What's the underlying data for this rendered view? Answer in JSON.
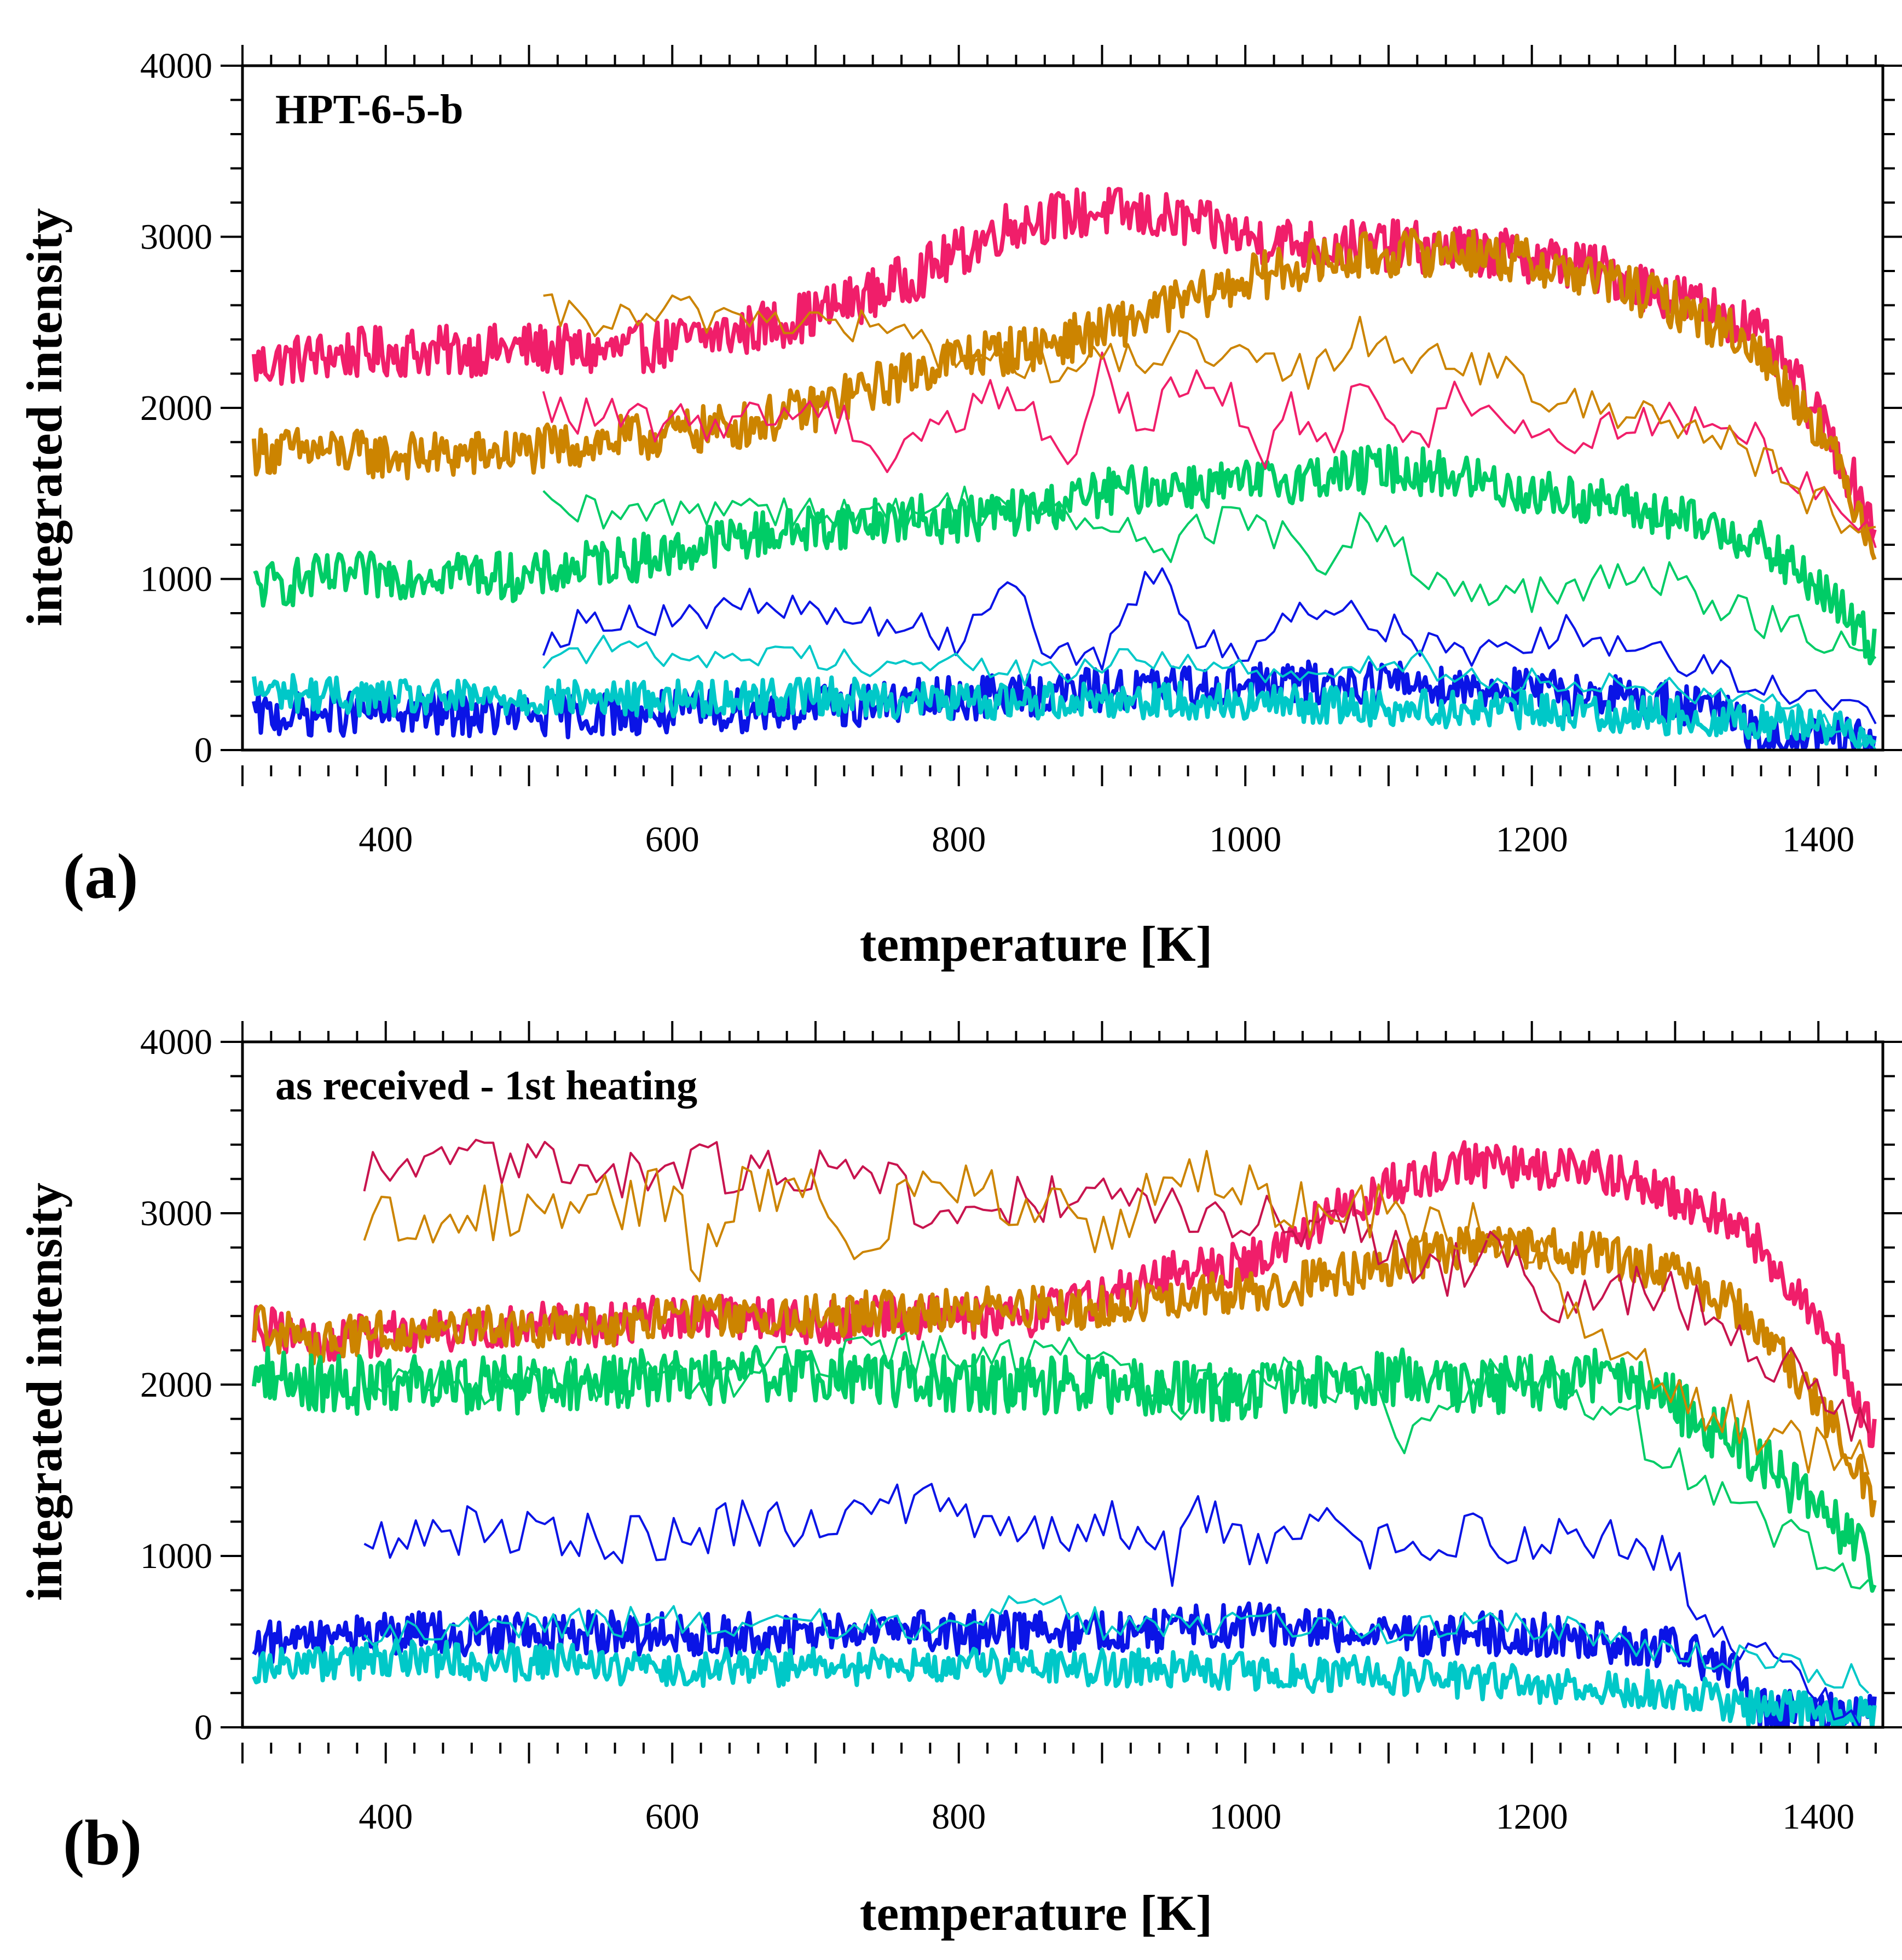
{
  "chart_data": [
    {
      "type": "line",
      "panel_label": "(a)",
      "title": "HPT-6-5-b",
      "xlabel": "temperature [K]",
      "ylabel": "integrated intensity",
      "xlim": [
        300,
        1445
      ],
      "ylim": [
        0,
        4000
      ],
      "x_ticks": [
        400,
        600,
        800,
        1000,
        1200,
        1400
      ],
      "x_tick_labels": [
        "400",
        "600",
        "800",
        "1000",
        "1200",
        "1400"
      ],
      "y_ticks": [
        0,
        1000,
        2000,
        3000,
        4000
      ],
      "y_tick_labels": [
        "0",
        "1000",
        "2000",
        "3000",
        "4000"
      ],
      "grid": false,
      "series": [
        {
          "name": "red heating",
          "color": "#f01e6a",
          "width": 8,
          "noise": 150,
          "x": [
            308,
            350,
            400,
            450,
            500,
            550,
            600,
            650,
            700,
            750,
            800,
            830,
            850,
            900,
            950,
            1000,
            1050,
            1100,
            1150,
            1200,
            1250,
            1300,
            1350,
            1380,
            1410,
            1440
          ],
          "y": [
            2250,
            2300,
            2330,
            2330,
            2350,
            2320,
            2380,
            2450,
            2550,
            2700,
            2900,
            3050,
            3100,
            3150,
            3100,
            3000,
            2950,
            2950,
            2920,
            2880,
            2800,
            2650,
            2500,
            2200,
            1800,
            1300
          ]
        },
        {
          "name": "orange heating",
          "color": "#cc8400",
          "width": 8,
          "noise": 140,
          "x": [
            308,
            350,
            400,
            450,
            500,
            550,
            600,
            650,
            700,
            750,
            800,
            850,
            900,
            950,
            1000,
            1050,
            1100,
            1150,
            1200,
            1250,
            1300,
            1350,
            1400,
            1440
          ],
          "y": [
            1750,
            1750,
            1720,
            1720,
            1750,
            1800,
            1850,
            1900,
            2000,
            2150,
            2300,
            2350,
            2450,
            2600,
            2750,
            2850,
            2900,
            2920,
            2850,
            2750,
            2600,
            2400,
            1900,
            1200
          ]
        },
        {
          "name": "green heating",
          "color": "#00cc66",
          "width": 8,
          "noise": 140,
          "x": [
            308,
            350,
            400,
            450,
            500,
            550,
            600,
            650,
            700,
            750,
            800,
            850,
            900,
            950,
            1000,
            1050,
            1100,
            1150,
            1200,
            1250,
            1300,
            1350,
            1400,
            1440
          ],
          "y": [
            950,
            1000,
            1020,
            1050,
            1000,
            1100,
            1150,
            1250,
            1300,
            1350,
            1350,
            1400,
            1500,
            1550,
            1550,
            1600,
            1650,
            1600,
            1500,
            1450,
            1350,
            1250,
            950,
            600
          ]
        },
        {
          "name": "blue heating",
          "color": "#0a14e6",
          "width": 8,
          "noise": 130,
          "x": [
            308,
            400,
            500,
            600,
            700,
            800,
            900,
            1000,
            1100,
            1200,
            1300,
            1340,
            1360,
            1440
          ],
          "y": [
            200,
            220,
            200,
            220,
            250,
            300,
            350,
            380,
            400,
            350,
            280,
            200,
            50,
            60
          ]
        },
        {
          "name": "cyan heating",
          "color": "#00c8c8",
          "width": 8,
          "noise": 110,
          "x": [
            308,
            400,
            500,
            600,
            700,
            800,
            900,
            1000,
            1100,
            1200,
            1300,
            1400,
            1440
          ],
          "y": [
            350,
            300,
            300,
            300,
            320,
            280,
            300,
            280,
            250,
            230,
            200,
            150,
            100
          ]
        },
        {
          "name": "red cooling",
          "color": "#f01e6a",
          "width": 4,
          "noise": 120,
          "x": [
            510,
            540,
            600,
            650,
            700,
            730,
            750,
            760,
            780,
            800,
            820,
            850,
            880,
            900,
            930,
            960,
            990,
            1010,
            1030,
            1060,
            1080,
            1110,
            1150,
            1220,
            1280,
            1350,
            1440
          ],
          "y": [
            2000,
            1950,
            1900,
            1950,
            2000,
            1900,
            1650,
            1800,
            1900,
            1900,
            2150,
            1950,
            1700,
            2250,
            1850,
            2200,
            2050,
            1700,
            2000,
            1800,
            2250,
            1700,
            2100,
            1800,
            1950,
            1850,
            1250
          ]
        },
        {
          "name": "orange cooling",
          "color": "#cc8400",
          "width": 4,
          "noise": 120,
          "x": [
            510,
            560,
            600,
            650,
            700,
            750,
            800,
            850,
            900,
            950,
            1000,
            1050,
            1080,
            1110,
            1150,
            1230,
            1280,
            1350,
            1440
          ],
          "y": [
            2550,
            2500,
            2550,
            2550,
            2500,
            2450,
            2300,
            2250,
            2250,
            2350,
            2250,
            2200,
            2450,
            2300,
            2300,
            2000,
            2000,
            1750,
            1200
          ]
        },
        {
          "name": "green cooling",
          "color": "#00cc66",
          "width": 4,
          "noise": 120,
          "x": [
            510,
            560,
            600,
            650,
            700,
            750,
            800,
            850,
            900,
            950,
            1000,
            1050,
            1080,
            1140,
            1220,
            1280,
            1440
          ],
          "y": [
            1400,
            1350,
            1400,
            1450,
            1400,
            1350,
            1450,
            1400,
            1300,
            1200,
            1400,
            1050,
            1350,
            900,
            900,
            1050,
            500
          ]
        },
        {
          "name": "blue cooling",
          "color": "#0a14e6",
          "width": 4,
          "noise": 100,
          "x": [
            510,
            560,
            600,
            650,
            700,
            750,
            800,
            840,
            860,
            900,
            940,
            960,
            1000,
            1040,
            1080,
            1140,
            1220,
            1300,
            1440
          ],
          "y": [
            650,
            800,
            750,
            850,
            800,
            750,
            650,
            1050,
            600,
            500,
            1100,
            700,
            550,
            850,
            800,
            550,
            700,
            550,
            180
          ]
        },
        {
          "name": "cyan cooling",
          "color": "#00c8c8",
          "width": 4,
          "noise": 80,
          "x": [
            510,
            560,
            600,
            650,
            700,
            750,
            800,
            850,
            900,
            950,
            1000,
            1050,
            1100,
            1150,
            1200,
            1250,
            1300,
            1350,
            1440
          ],
          "y": [
            550,
            600,
            550,
            550,
            550,
            500,
            500,
            450,
            500,
            550,
            450,
            400,
            550,
            450,
            400,
            400,
            350,
            350,
            20
          ]
        }
      ]
    },
    {
      "type": "line",
      "panel_label": "(b)",
      "title": "as received - 1st heating",
      "xlabel": "temperature [K]",
      "ylabel": "integrated intensity",
      "xlim": [
        300,
        1445
      ],
      "ylim": [
        0,
        4000
      ],
      "x_ticks": [
        400,
        600,
        800,
        1000,
        1200,
        1400
      ],
      "x_tick_labels": [
        "400",
        "600",
        "800",
        "1000",
        "1200",
        "1400"
      ],
      "y_ticks": [
        0,
        1000,
        2000,
        3000,
        4000
      ],
      "y_tick_labels": [
        "0",
        "1000",
        "2000",
        "3000",
        "4000"
      ],
      "grid": false,
      "series": [
        {
          "name": "red heating",
          "color": "#f01e6a",
          "width": 8,
          "noise": 130,
          "x": [
            308,
            350,
            400,
            450,
            500,
            550,
            600,
            650,
            700,
            750,
            800,
            850,
            900,
            950,
            1000,
            1050,
            1100,
            1150,
            1200,
            1250,
            1300,
            1350,
            1400,
            1440
          ],
          "y": [
            2350,
            2250,
            2300,
            2300,
            2350,
            2350,
            2400,
            2400,
            2350,
            2400,
            2400,
            2400,
            2500,
            2650,
            2700,
            2950,
            3150,
            3300,
            3250,
            3250,
            3100,
            2900,
            2400,
            1700
          ]
        },
        {
          "name": "orange heating",
          "color": "#cc8400",
          "width": 8,
          "noise": 130,
          "x": [
            308,
            350,
            400,
            450,
            500,
            550,
            600,
            650,
            700,
            750,
            800,
            850,
            900,
            950,
            1000,
            1050,
            1100,
            1150,
            1200,
            1250,
            1300,
            1350,
            1400,
            1440
          ],
          "y": [
            2350,
            2250,
            2300,
            2320,
            2350,
            2350,
            2380,
            2400,
            2400,
            2420,
            2450,
            2450,
            2450,
            2500,
            2550,
            2600,
            2700,
            2800,
            2800,
            2750,
            2650,
            2400,
            1900,
            1300
          ]
        },
        {
          "name": "green heating",
          "color": "#00cc66",
          "width": 8,
          "noise": 170,
          "x": [
            308,
            350,
            400,
            500,
            600,
            700,
            800,
            900,
            1000,
            1050,
            1100,
            1150,
            1200,
            1250,
            1300,
            1350,
            1400,
            1440
          ],
          "y": [
            2100,
            2000,
            2000,
            2000,
            2050,
            2050,
            2000,
            2000,
            1950,
            2000,
            2050,
            2000,
            2000,
            2050,
            1900,
            1600,
            1300,
            900
          ]
        },
        {
          "name": "blue heating",
          "color": "#0a14e6",
          "width": 8,
          "noise": 130,
          "x": [
            308,
            400,
            500,
            600,
            700,
            800,
            900,
            1000,
            1100,
            1200,
            1300,
            1340,
            1360,
            1440
          ],
          "y": [
            500,
            550,
            550,
            550,
            550,
            550,
            550,
            600,
            550,
            550,
            450,
            350,
            100,
            50
          ]
        },
        {
          "name": "cyan heating",
          "color": "#00c8c8",
          "width": 8,
          "noise": 110,
          "x": [
            308,
            400,
            500,
            600,
            700,
            800,
            900,
            1000,
            1100,
            1200,
            1300,
            1350,
            1440
          ],
          "y": [
            350,
            400,
            380,
            350,
            350,
            350,
            350,
            330,
            300,
            250,
            220,
            120,
            80
          ]
        },
        {
          "name": "red cooling",
          "color": "#c8144e",
          "width": 4,
          "noise": 170,
          "x": [
            385,
            400,
            450,
            500,
            550,
            600,
            650,
            700,
            750,
            780,
            800,
            850,
            900,
            950,
            1000,
            1050,
            1070,
            1130,
            1180,
            1220,
            1280,
            1350,
            1440
          ],
          "y": [
            3200,
            3250,
            3300,
            3300,
            3250,
            3250,
            3250,
            3300,
            3150,
            3050,
            3100,
            3050,
            3050,
            3050,
            2950,
            2900,
            3000,
            2600,
            2800,
            2450,
            2550,
            2300,
            1700
          ]
        },
        {
          "name": "orange cooling",
          "color": "#cc8400",
          "width": 4,
          "noise": 170,
          "x": [
            385,
            400,
            450,
            500,
            550,
            600,
            620,
            650,
            700,
            730,
            760,
            800,
            850,
            900,
            950,
            970,
            1000,
            1050,
            1100,
            1150,
            1200,
            1250,
            1300,
            1350,
            1440
          ],
          "y": [
            2900,
            2950,
            3000,
            3000,
            3050,
            3100,
            2700,
            3200,
            3100,
            2800,
            3050,
            3200,
            3050,
            2900,
            3200,
            3300,
            3150,
            3000,
            3000,
            2950,
            2800,
            2300,
            2000,
            1750,
            1500
          ]
        },
        {
          "name": "green cooling",
          "color": "#00cc66",
          "width": 4,
          "noise": 150,
          "x": [
            385,
            450,
            500,
            600,
            650,
            700,
            750,
            800,
            850,
            900,
            950,
            1000,
            1050,
            1080,
            1110,
            1150,
            1220,
            1280,
            1350,
            1440
          ],
          "y": [
            2000,
            2000,
            2000,
            2050,
            2050,
            2100,
            2150,
            2200,
            2100,
            2200,
            1900,
            2050,
            2000,
            2050,
            1600,
            2050,
            2000,
            1700,
            1200,
            900
          ]
        },
        {
          "name": "blue cooling",
          "color": "#0a14e6",
          "width": 4,
          "noise": 150,
          "x": [
            385,
            450,
            500,
            550,
            600,
            650,
            700,
            750,
            790,
            820,
            850,
            880,
            900,
            930,
            950,
            970,
            1000,
            1050,
            1100,
            1150,
            1220,
            1280,
            1350,
            1440
          ],
          "y": [
            1100,
            1150,
            1150,
            1100,
            1100,
            1200,
            1200,
            1300,
            1400,
            1100,
            1150,
            1150,
            1200,
            1100,
            950,
            1300,
            1050,
            1150,
            1050,
            1100,
            1100,
            1100,
            400,
            20
          ]
        },
        {
          "name": "cyan cooling",
          "color": "#00c8c8",
          "width": 4,
          "noise": 90,
          "x": [
            385,
            450,
            500,
            600,
            700,
            770,
            800,
            850,
            900,
            950,
            1000,
            1050,
            1100,
            1150,
            1200,
            1250,
            1300,
            1350,
            1440
          ],
          "y": [
            550,
            600,
            600,
            620,
            600,
            600,
            650,
            750,
            600,
            600,
            600,
            600,
            550,
            600,
            600,
            550,
            450,
            400,
            250
          ]
        }
      ]
    }
  ]
}
